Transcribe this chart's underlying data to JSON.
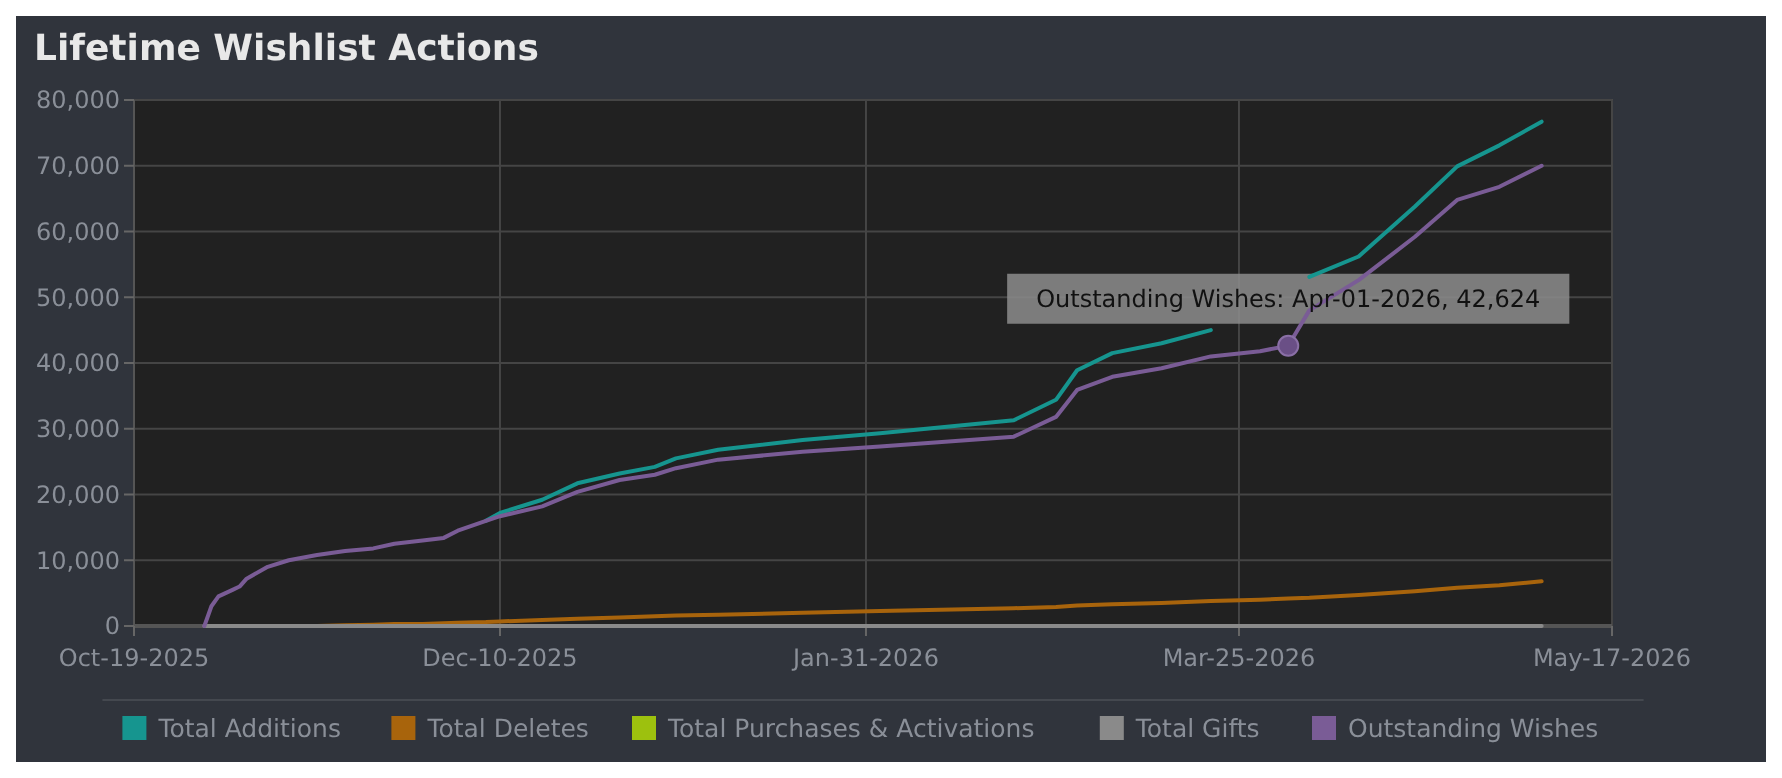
{
  "chart_data": {
    "type": "line",
    "title": "Lifetime Wishlist Actions",
    "x": [
      "2025-10-29",
      "2025-10-30",
      "2025-10-31",
      "2025-11-02",
      "2025-11-03",
      "2025-11-04",
      "2025-11-07",
      "2025-11-10",
      "2025-11-14",
      "2025-11-18",
      "2025-11-22",
      "2025-11-25",
      "2025-11-29",
      "2025-12-02",
      "2025-12-04",
      "2025-12-08",
      "2025-12-10",
      "2025-12-16",
      "2025-12-21",
      "2025-12-27",
      "2026-01-01",
      "2026-01-04",
      "2026-01-10",
      "2026-01-22",
      "2026-02-02",
      "2026-02-21",
      "2026-02-27",
      "2026-03-02",
      "2026-03-07",
      "2026-03-14",
      "2026-03-21",
      "2026-03-28",
      "2026-04-01",
      "2026-04-04",
      "2026-04-11",
      "2026-04-19",
      "2026-04-25",
      "2026-05-01",
      "2026-05-07"
    ],
    "series": [
      {
        "name": "Total Additions",
        "color": "#16958f",
        "values": [
          null,
          null,
          null,
          null,
          null,
          null,
          null,
          null,
          null,
          null,
          null,
          null,
          null,
          null,
          null,
          16000,
          17200,
          19200,
          21700,
          23200,
          24200,
          25500,
          26800,
          28300,
          29300,
          31300,
          34400,
          38900,
          41500,
          43000,
          45000,
          null,
          null,
          53100,
          56200,
          63800,
          69900,
          73100,
          76700
        ]
      },
      {
        "name": "Total Deletes",
        "color": "#a8640c",
        "values": [
          null,
          null,
          null,
          null,
          null,
          null,
          null,
          0,
          0,
          100,
          200,
          300,
          300,
          400,
          500,
          600,
          700,
          900,
          1100,
          1300,
          1500,
          1600,
          1700,
          2000,
          2300,
          2700,
          2900,
          3100,
          3300,
          3500,
          3800,
          4000,
          4200,
          4300,
          4700,
          5300,
          5800,
          6200,
          6800
        ]
      },
      {
        "name": "Total Purchases & Activations",
        "color": "#9dc10e",
        "values": [
          null,
          null,
          null,
          null,
          null,
          null,
          null,
          null,
          null,
          null,
          null,
          null,
          null,
          null,
          null,
          null,
          null,
          null,
          null,
          null,
          null,
          null,
          null,
          null,
          null,
          null,
          null,
          null,
          null,
          null,
          null,
          null,
          null,
          null,
          null,
          null,
          null,
          null,
          null
        ]
      },
      {
        "name": "Total Gifts",
        "color": "#8a8a8a",
        "values": [
          0,
          0,
          0,
          0,
          0,
          0,
          0,
          0,
          0,
          0,
          0,
          0,
          0,
          0,
          0,
          0,
          0,
          0,
          0,
          0,
          0,
          0,
          0,
          0,
          0,
          0,
          0,
          0,
          0,
          0,
          0,
          0,
          0,
          0,
          0,
          0,
          0,
          0,
          0
        ]
      },
      {
        "name": "Outstanding Wishes",
        "color": "#7a5c96",
        "values": [
          0,
          3000,
          4500,
          5500,
          6000,
          7200,
          9000,
          10000,
          10800,
          11400,
          11800,
          12500,
          13000,
          13400,
          14500,
          16000,
          16700,
          18200,
          20400,
          22200,
          23000,
          24000,
          25300,
          26500,
          27300,
          28800,
          31800,
          35900,
          37900,
          39200,
          41000,
          41800,
          42624,
          48000,
          52600,
          59200,
          64800,
          66800,
          70000
        ]
      }
    ],
    "xlim": [
      "2025-10-19",
      "2026-05-17"
    ],
    "xticks": [
      {
        "value": "2025-10-19",
        "label": "Oct-19-2025"
      },
      {
        "value": "2025-12-10",
        "label": "Dec-10-2025"
      },
      {
        "value": "2026-01-31",
        "label": "Jan-31-2026"
      },
      {
        "value": "2026-03-25",
        "label": "Mar-25-2026"
      },
      {
        "value": "2026-05-17",
        "label": "May-17-2026"
      }
    ],
    "ylim": [
      0,
      80000
    ],
    "yticks": [
      {
        "value": 0,
        "label": "0"
      },
      {
        "value": 10000,
        "label": "10,000"
      },
      {
        "value": 20000,
        "label": "20,000"
      },
      {
        "value": 30000,
        "label": "30,000"
      },
      {
        "value": 40000,
        "label": "40,000"
      },
      {
        "value": 50000,
        "label": "50,000"
      },
      {
        "value": 60000,
        "label": "60,000"
      },
      {
        "value": 70000,
        "label": "70,000"
      },
      {
        "value": 80000,
        "label": "80,000"
      }
    ],
    "annotations": [
      {
        "text": "Outstanding Wishes: Apr-01-2026, 42,624",
        "x": "2026-04-01",
        "y": 42624
      }
    ],
    "grid": true,
    "legend": "bottom",
    "marker": "none",
    "line_style": "solid"
  }
}
